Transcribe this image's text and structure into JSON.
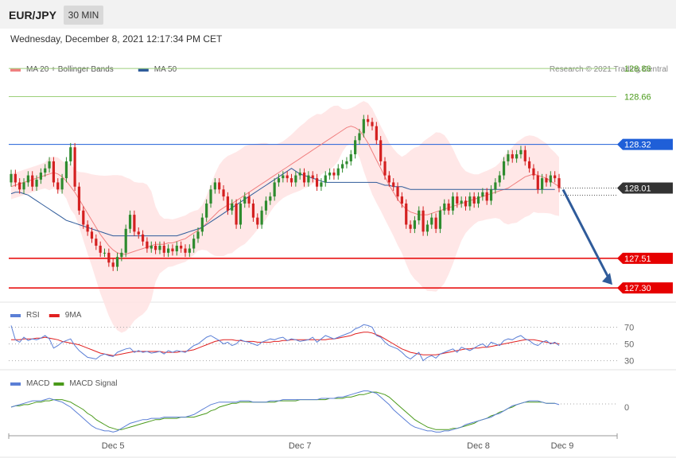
{
  "header": {
    "symbol": "EUR/JPY",
    "timeframe": "30 MIN",
    "datetime": "Wednesday, December 8, 2021 12:17:34 PM CET"
  },
  "legend_main": [
    {
      "label": "MA 20 + Bollinger Bands",
      "color": "#f08080"
    },
    {
      "label": "MA 50",
      "color": "#2f5b9a"
    }
  ],
  "credit": "Research © 2021 Trading Central",
  "legend_rsi": [
    {
      "label": "RSI",
      "color": "#5b7fd6"
    },
    {
      "label": "9MA",
      "color": "#e02020"
    }
  ],
  "legend_macd": [
    {
      "label": "MACD",
      "color": "#5b7fd6"
    },
    {
      "label": "MACD Signal",
      "color": "#4a9a1a"
    }
  ],
  "colors": {
    "up": "#2e8b2e",
    "down": "#d42020",
    "band_fill": "#ffe3e3",
    "resistance_green": "#4a9a1a",
    "support_red": "#e60000",
    "pivot_blue": "#1f5fd8",
    "last_price_bg": "#333333",
    "arrow": "#2f5b9a"
  },
  "chart_data": [
    {
      "type": "candlestick",
      "title": "EUR/JPY 30 MIN",
      "ylim": [
        127.21,
        128.94
      ],
      "x_tick_labels": [
        "Dec 5",
        "Dec 7",
        "Dec 8",
        "Dec 9"
      ],
      "levels": [
        {
          "value": 128.86,
          "label": "128.86",
          "kind": "resistance"
        },
        {
          "value": 128.66,
          "label": "128.66",
          "kind": "resistance"
        },
        {
          "value": 128.32,
          "label": "128.32",
          "kind": "pivot"
        },
        {
          "value": 128.01,
          "label": "128.01",
          "kind": "last"
        },
        {
          "value": 127.51,
          "label": "127.51",
          "kind": "support"
        },
        {
          "value": 127.3,
          "label": "127.30",
          "kind": "support"
        }
      ],
      "last_price": 128.01,
      "forecast_arrow": {
        "from": 128.01,
        "to": 127.3
      },
      "close": [
        128.11,
        128.05,
        128.0,
        128.05,
        128.1,
        128.02,
        128.07,
        128.12,
        128.15,
        128.2,
        128.05,
        128.0,
        128.08,
        128.2,
        128.3,
        128.02,
        127.85,
        127.75,
        127.7,
        127.65,
        127.6,
        127.55,
        127.55,
        127.48,
        127.45,
        127.52,
        127.55,
        127.72,
        127.82,
        127.7,
        127.68,
        127.63,
        127.58,
        127.6,
        127.57,
        127.6,
        127.55,
        127.58,
        127.56,
        127.6,
        127.58,
        127.55,
        127.58,
        127.65,
        127.7,
        127.8,
        127.9,
        128.0,
        128.05,
        128.0,
        127.95,
        127.85,
        127.9,
        127.75,
        127.9,
        127.95,
        127.9,
        127.8,
        127.75,
        127.85,
        127.92,
        127.95,
        128.05,
        128.08,
        128.1,
        128.08,
        128.05,
        128.1,
        128.12,
        128.05,
        128.1,
        128.08,
        128.02,
        128.05,
        128.1,
        128.12,
        128.1,
        128.15,
        128.18,
        128.2,
        128.25,
        128.35,
        128.4,
        128.5,
        128.48,
        128.45,
        128.35,
        128.2,
        128.1,
        128.05,
        128.02,
        127.95,
        127.9,
        127.75,
        127.72,
        127.78,
        127.85,
        127.7,
        127.75,
        127.8,
        127.72,
        127.85,
        127.9,
        127.85,
        127.95,
        127.9,
        127.92,
        127.88,
        127.95,
        127.9,
        127.95,
        127.98,
        127.92,
        128.0,
        128.05,
        128.1,
        128.2,
        128.25,
        128.22,
        128.25,
        128.28,
        128.2,
        128.15,
        128.1,
        128.0,
        128.08,
        128.05,
        128.1,
        128.08,
        128.01
      ],
      "series": [
        {
          "name": "MA 50",
          "values": [
            127.97,
            127.98,
            127.98,
            127.97,
            127.96,
            127.94,
            127.92,
            127.9,
            127.88,
            127.86,
            127.84,
            127.82,
            127.8,
            127.78,
            127.77,
            127.76,
            127.75,
            127.74,
            127.73,
            127.72,
            127.71,
            127.7,
            127.69,
            127.68,
            127.67,
            127.67,
            127.67,
            127.67,
            127.67,
            127.67,
            127.67,
            127.67,
            127.67,
            127.67,
            127.67,
            127.67,
            127.67,
            127.67,
            127.67,
            127.67,
            127.68,
            127.69,
            127.7,
            127.71,
            127.72,
            127.73,
            127.75,
            127.77,
            127.79,
            127.81,
            127.83,
            127.85,
            127.87,
            127.89,
            127.91,
            127.93,
            127.95,
            127.97,
            127.99,
            128.01,
            128.03,
            128.05,
            128.07,
            128.09,
            128.11,
            128.13,
            128.15,
            128.13,
            128.11,
            128.1,
            128.09,
            128.08,
            128.07,
            128.06,
            128.05,
            128.05,
            128.05,
            128.05,
            128.05,
            128.05,
            128.05,
            128.05,
            128.05,
            128.05,
            128.05,
            128.05,
            128.05,
            128.04,
            128.03,
            128.03,
            128.02,
            128.02,
            128.02,
            128.01,
            128.0,
            128.0,
            128.0,
            128.0,
            128.0,
            128.0,
            128.0,
            128.0,
            128.0,
            128.0,
            128.0,
            128.0,
            128.0,
            128.0,
            128.0,
            128.0,
            128.0,
            128.0,
            128.0,
            128.0,
            128.0,
            128.0,
            128.0,
            128.0,
            128.0,
            128.0,
            128.0,
            128.0,
            128.0,
            128.0,
            128.0,
            128.0,
            128.0,
            128.0,
            128.0
          ]
        },
        {
          "name": "MA 20",
          "values": [
            128.02,
            128.03,
            128.04,
            128.05,
            128.06,
            128.07,
            128.08,
            128.09,
            128.1,
            128.11,
            128.12,
            128.11,
            128.09,
            128.06,
            128.02,
            127.98,
            127.93,
            127.88,
            127.83,
            127.78,
            127.73,
            127.68,
            127.64,
            127.6,
            127.57,
            127.55,
            127.54,
            127.54,
            127.55,
            127.56,
            127.57,
            127.58,
            127.59,
            127.6,
            127.61,
            127.61,
            127.61,
            127.62,
            127.62,
            127.63,
            127.64,
            127.65,
            127.67,
            127.69,
            127.71,
            127.73,
            127.76,
            127.79,
            127.82,
            127.85,
            127.87,
            127.89,
            127.9,
            127.92,
            127.94,
            127.96,
            127.98,
            128.0,
            128.02,
            128.04,
            128.06,
            128.08,
            128.1,
            128.12,
            128.14,
            128.16,
            128.18,
            128.2,
            128.22,
            128.24,
            128.26,
            128.28,
            128.3,
            128.32,
            128.34,
            128.36,
            128.38,
            128.4,
            128.42,
            128.44,
            128.45,
            128.44,
            128.42,
            128.38,
            128.33,
            128.27,
            128.21,
            128.15,
            128.09,
            128.03,
            127.98,
            127.93,
            127.89,
            127.86,
            127.84,
            127.83,
            127.82,
            127.82,
            127.82,
            127.83,
            127.84,
            127.85,
            127.86,
            127.87,
            127.88,
            127.89,
            127.9,
            127.91,
            127.92,
            127.93,
            127.94,
            127.95,
            127.96,
            127.97,
            127.98,
            127.99,
            128.0,
            128.01,
            128.03,
            128.05,
            128.07,
            128.09,
            128.1,
            128.11,
            128.1,
            128.09,
            128.08,
            128.06,
            128.04,
            128.02
          ]
        }
      ]
    },
    {
      "type": "line",
      "title": "RSI",
      "ylim": [
        22,
        79
      ],
      "y_tick_labels": [
        "70",
        "50",
        "30"
      ],
      "series": [
        {
          "name": "RSI",
          "values": [
            72,
            55,
            52,
            58,
            54,
            56,
            55,
            57,
            60,
            56,
            45,
            48,
            52,
            54,
            56,
            48,
            42,
            38,
            34,
            33,
            32,
            36,
            38,
            36,
            35,
            40,
            42,
            44,
            45,
            40,
            42,
            40,
            41,
            39,
            40,
            41,
            38,
            42,
            40,
            42,
            41,
            40,
            44,
            48,
            50,
            54,
            58,
            60,
            57,
            54,
            50,
            52,
            48,
            50,
            55,
            53,
            52,
            50,
            48,
            52,
            54,
            56,
            55,
            57,
            58,
            54,
            56,
            55,
            53,
            54,
            55,
            58,
            52,
            56,
            60,
            58,
            56,
            58,
            60,
            62,
            64,
            68,
            70,
            73,
            72,
            70,
            60,
            58,
            52,
            48,
            46,
            44,
            40,
            35,
            32,
            36,
            40,
            30,
            34,
            36,
            33,
            38,
            40,
            42,
            44,
            40,
            46,
            44,
            42,
            45,
            48,
            50,
            46,
            52,
            50,
            48,
            54,
            56,
            55,
            58,
            60,
            56,
            54,
            50,
            48,
            52,
            54,
            50,
            52,
            48
          ]
        },
        {
          "name": "9MA",
          "values": [
            55,
            55,
            55,
            56,
            56,
            56,
            57,
            57,
            58,
            57,
            56,
            55,
            53,
            52,
            51,
            50,
            49,
            47,
            45,
            43,
            41,
            39,
            38,
            37,
            36,
            37,
            38,
            39,
            40,
            41,
            41,
            41,
            41,
            41,
            41,
            41,
            40,
            40,
            40,
            40,
            41,
            41,
            42,
            43,
            45,
            47,
            49,
            51,
            53,
            54,
            55,
            55,
            55,
            54,
            54,
            53,
            53,
            53,
            52,
            52,
            52,
            52,
            53,
            53,
            54,
            54,
            55,
            55,
            55,
            55,
            55,
            55,
            55,
            55,
            55,
            56,
            56,
            57,
            58,
            59,
            60,
            62,
            63,
            64,
            64,
            63,
            61,
            59,
            56,
            53,
            50,
            47,
            44,
            42,
            40,
            39,
            38,
            37,
            37,
            37,
            37,
            38,
            39,
            40,
            41,
            42,
            43,
            44,
            44,
            45,
            45,
            46,
            46,
            47,
            48,
            49,
            50,
            51,
            52,
            53,
            54,
            55,
            55,
            55,
            54,
            53,
            52,
            51,
            51,
            50
          ]
        }
      ]
    },
    {
      "type": "line",
      "title": "MACD",
      "ylim": [
        -0.21,
        0.14
      ],
      "y_tick_labels": [
        "0"
      ],
      "series": [
        {
          "name": "MACD",
          "values": [
            0.0,
            0.01,
            0.02,
            0.03,
            0.04,
            0.05,
            0.05,
            0.05,
            0.06,
            0.07,
            0.06,
            0.05,
            0.04,
            0.02,
            0.0,
            -0.03,
            -0.06,
            -0.09,
            -0.12,
            -0.15,
            -0.17,
            -0.18,
            -0.19,
            -0.19,
            -0.2,
            -0.19,
            -0.17,
            -0.15,
            -0.13,
            -0.12,
            -0.11,
            -0.1,
            -0.1,
            -0.09,
            -0.09,
            -0.09,
            -0.08,
            -0.08,
            -0.08,
            -0.08,
            -0.08,
            -0.08,
            -0.07,
            -0.06,
            -0.04,
            -0.02,
            0.0,
            0.02,
            0.03,
            0.04,
            0.04,
            0.04,
            0.04,
            0.04,
            0.05,
            0.05,
            0.05,
            0.04,
            0.04,
            0.04,
            0.04,
            0.05,
            0.05,
            0.05,
            0.06,
            0.06,
            0.06,
            0.06,
            0.06,
            0.06,
            0.06,
            0.06,
            0.06,
            0.07,
            0.07,
            0.07,
            0.07,
            0.08,
            0.08,
            0.09,
            0.1,
            0.11,
            0.12,
            0.13,
            0.13,
            0.12,
            0.11,
            0.08,
            0.05,
            0.02,
            -0.02,
            -0.05,
            -0.08,
            -0.11,
            -0.14,
            -0.16,
            -0.17,
            -0.18,
            -0.19,
            -0.19,
            -0.2,
            -0.2,
            -0.19,
            -0.19,
            -0.18,
            -0.17,
            -0.16,
            -0.14,
            -0.13,
            -0.12,
            -0.11,
            -0.1,
            -0.09,
            -0.08,
            -0.06,
            -0.05,
            -0.03,
            -0.01,
            0.01,
            0.02,
            0.03,
            0.04,
            0.05,
            0.05,
            0.05,
            0.04,
            0.03,
            0.03,
            0.03,
            0.02
          ]
        },
        {
          "name": "MACD Signal",
          "values": [
            0.0,
            0.01,
            0.01,
            0.02,
            0.02,
            0.03,
            0.04,
            0.04,
            0.05,
            0.05,
            0.06,
            0.06,
            0.06,
            0.05,
            0.04,
            0.02,
            0.0,
            -0.02,
            -0.05,
            -0.07,
            -0.1,
            -0.12,
            -0.14,
            -0.16,
            -0.17,
            -0.18,
            -0.18,
            -0.17,
            -0.16,
            -0.15,
            -0.14,
            -0.13,
            -0.12,
            -0.11,
            -0.1,
            -0.1,
            -0.09,
            -0.09,
            -0.09,
            -0.09,
            -0.08,
            -0.08,
            -0.08,
            -0.08,
            -0.07,
            -0.06,
            -0.05,
            -0.03,
            -0.02,
            0.0,
            0.01,
            0.02,
            0.03,
            0.03,
            0.04,
            0.04,
            0.04,
            0.04,
            0.04,
            0.04,
            0.04,
            0.04,
            0.04,
            0.05,
            0.05,
            0.05,
            0.05,
            0.05,
            0.06,
            0.06,
            0.06,
            0.06,
            0.06,
            0.06,
            0.06,
            0.07,
            0.07,
            0.07,
            0.07,
            0.08,
            0.08,
            0.09,
            0.1,
            0.1,
            0.11,
            0.12,
            0.12,
            0.11,
            0.1,
            0.08,
            0.05,
            0.02,
            -0.01,
            -0.04,
            -0.07,
            -0.1,
            -0.12,
            -0.14,
            -0.16,
            -0.17,
            -0.18,
            -0.18,
            -0.18,
            -0.18,
            -0.17,
            -0.17,
            -0.16,
            -0.15,
            -0.14,
            -0.13,
            -0.11,
            -0.1,
            -0.09,
            -0.07,
            -0.06,
            -0.04,
            -0.03,
            -0.01,
            0.0,
            0.02,
            0.03,
            0.04,
            0.04,
            0.04,
            0.04,
            0.04,
            0.03,
            0.03,
            0.03
          ]
        }
      ]
    }
  ]
}
